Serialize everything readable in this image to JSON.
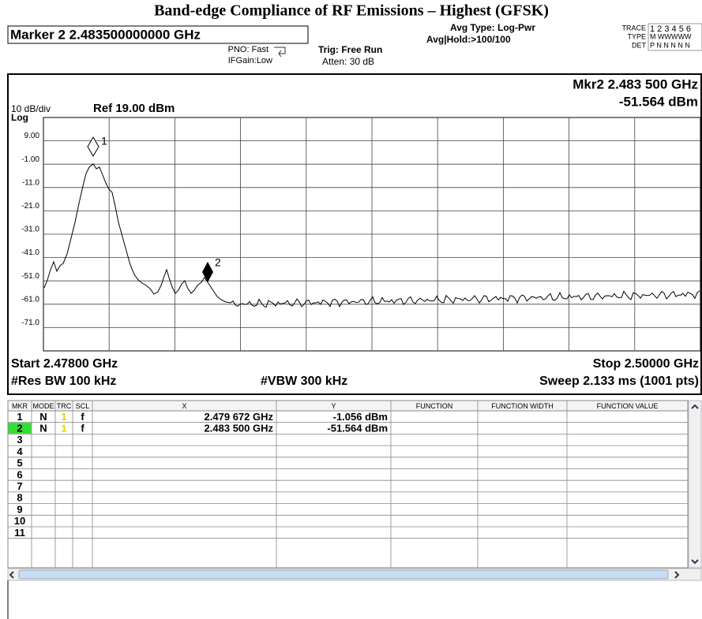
{
  "title": "Band-edge Compliance of RF Emissions – Highest (GFSK)",
  "header": {
    "marker_readout": "Marker 2 2.483500000000 GHz",
    "pno": "PNO: Fast",
    "ifgain": "IFGain:Low",
    "trig": "Trig: Free Run",
    "atten": "Atten: 30 dB",
    "avg_type": "Avg Type: Log-Pwr",
    "avg_hold": "Avg|Hold:>100/100",
    "trace_panel": {
      "trace": "TRACE",
      "type": "TYPE",
      "det": "DET",
      "trace_nums": "1 2 3 4 5 6",
      "type_vals": "M WWWWW",
      "det_vals": "P N N N N N"
    }
  },
  "display": {
    "mkr_freq": "Mkr2 2.483 500 GHz",
    "mkr_level": "-51.564 dBm",
    "scale": "10 dB/div",
    "ref": "Ref 19.00 dBm",
    "log": "Log",
    "y_labels": [
      "9.00",
      "-1.00",
      "-11.0",
      "-21.0",
      "-31.0",
      "-41.0",
      "-51.0",
      "-61.0",
      "-71.0"
    ],
    "trace_markers": [
      "1",
      "2"
    ],
    "start": "Start 2.47800 GHz",
    "stop": "Stop 2.50000 GHz",
    "rbw": "#Res BW 100 kHz",
    "vbw": "#VBW 300 kHz",
    "sweep": "Sweep  2.133 ms (1001 pts)"
  },
  "table": {
    "headers": [
      "MKR",
      "MODE",
      "TRC",
      "SCL",
      "X",
      "Y",
      "FUNCTION",
      "FUNCTION WIDTH",
      "FUNCTION VALUE"
    ],
    "rows": [
      {
        "mkr": "1",
        "mode": "N",
        "trc": "1",
        "scl": "f",
        "x": "2.479 672 GHz",
        "y": "-1.056 dBm"
      },
      {
        "mkr": "2",
        "mode": "N",
        "trc": "1",
        "scl": "f",
        "x": "2.483 500 GHz",
        "y": "-51.564 dBm"
      },
      {
        "mkr": "3"
      },
      {
        "mkr": "4"
      },
      {
        "mkr": "5"
      },
      {
        "mkr": "6"
      },
      {
        "mkr": "7"
      },
      {
        "mkr": "8"
      },
      {
        "mkr": "9"
      },
      {
        "mkr": "10"
      },
      {
        "mkr": "11"
      }
    ]
  }
}
